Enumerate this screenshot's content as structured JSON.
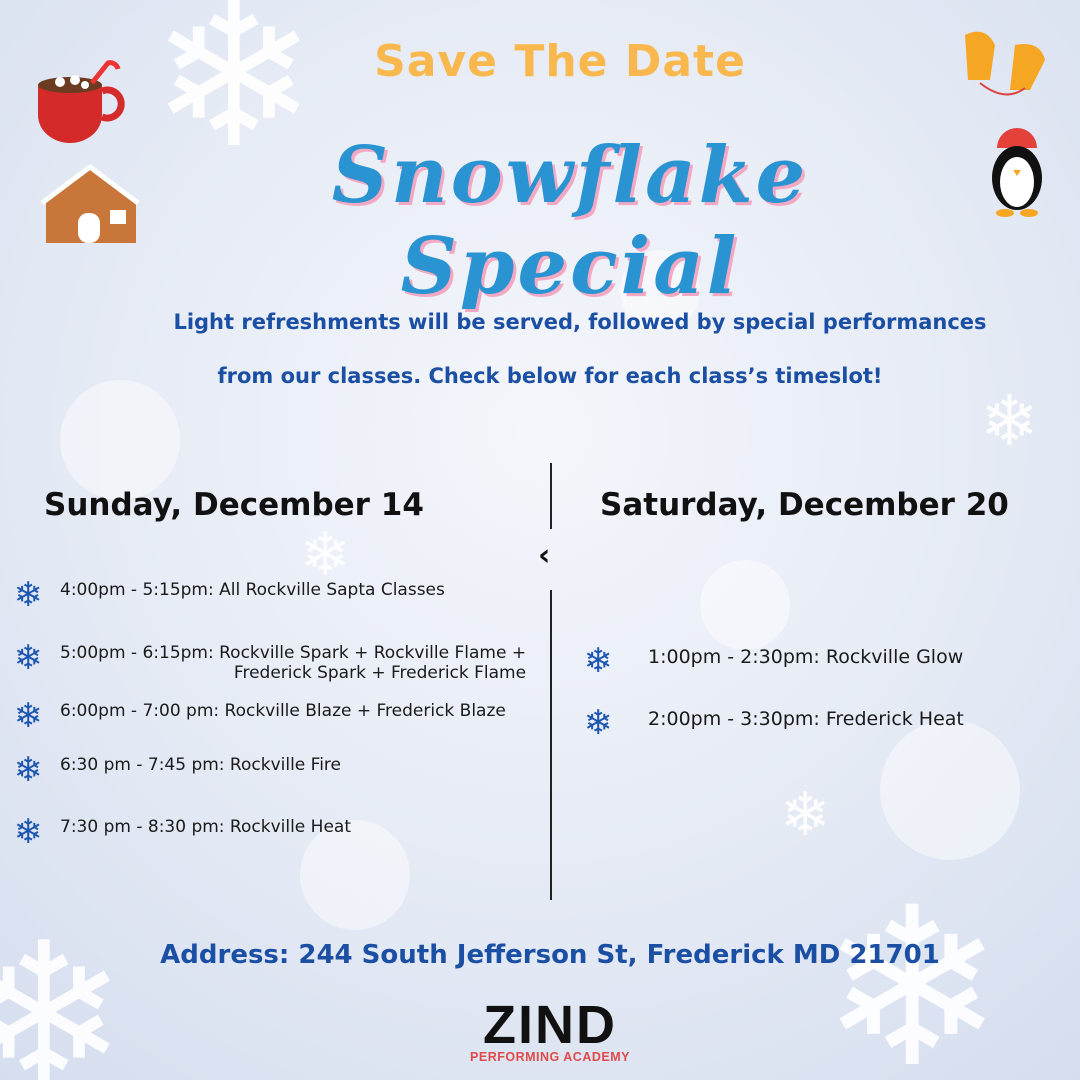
{
  "header": {
    "kicker": "Save The Date",
    "title": "Snowflake Special"
  },
  "intro": {
    "line1": "Light refreshments will be served, followed by special performances",
    "line2": "from our classes. Check below for each class’s timeslot!"
  },
  "left": {
    "day": "Sunday, December 14",
    "items": [
      {
        "text": "4:00pm - 5:15pm: All Rockville Sapta Classes"
      },
      {
        "text": "5:00pm - 6:15pm: Rockville Spark + Rockville Flame +",
        "text2": "Frederick Spark + Frederick Flame"
      },
      {
        "text": "6:00pm - 7:00 pm: Rockville Blaze + Frederick Blaze"
      },
      {
        "text": "6:30 pm - 7:45 pm: Rockville Fire"
      },
      {
        "text": "7:30 pm - 8:30 pm: Rockville Heat"
      }
    ]
  },
  "right": {
    "day": "Saturday, December 20",
    "items": [
      {
        "text": "1:00pm - 2:30pm: Rockville Glow"
      },
      {
        "text": "2:00pm - 3:30pm: Frederick Heat"
      }
    ]
  },
  "address": "Address: 244 South Jefferson St, Frederick MD  21701",
  "logo": {
    "main": "ZIND",
    "sub": "PERFORMING ACADEMY"
  },
  "icons": {
    "list": "snowflake-icon",
    "decor": [
      "hot-cocoa-mug-icon",
      "gingerbread-house-icon",
      "mittens-icon",
      "penguin-icon",
      "chevron-left-icon"
    ]
  },
  "colors": {
    "kicker": "#f8b84e",
    "title": "#2a93d2",
    "text_blue": "#1b4fa3",
    "logo_red": "#e04a4a"
  }
}
